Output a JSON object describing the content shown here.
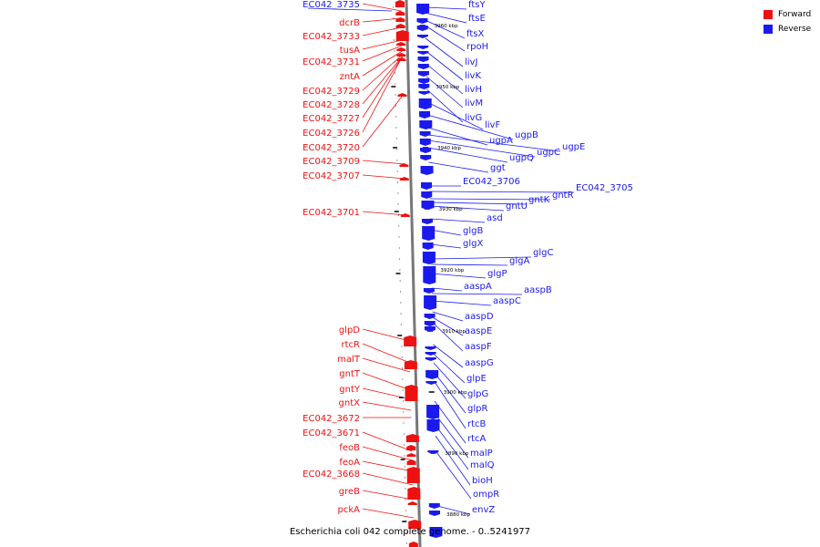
{
  "caption": "Escherichia coli 042 complete genome. - 0..5241977",
  "legend": {
    "forward_label": "Forward",
    "reverse_label": "Reverse",
    "forward_color": "#ee1111",
    "reverse_color": "#1a1aee"
  },
  "axis": {
    "ticks": [
      "3960 kbp",
      "3950 kbp",
      "3940 kbp",
      "3930 kbp",
      "3920 kbp",
      "3910 kbp",
      "3900 kbp",
      "3890 kbp",
      "3880 kbp"
    ]
  },
  "forward_genes": [
    "EC042_3735",
    "dcrB",
    "EC042_3733",
    "tusA",
    "EC042_3731",
    "zntA",
    "EC042_3729",
    "EC042_3728",
    "EC042_3727",
    "EC042_3726",
    "EC042_3720",
    "EC042_3709",
    "EC042_3707",
    "EC042_3701",
    "glpD",
    "rtcR",
    "malT",
    "gntT",
    "gntY",
    "gntX",
    "EC042_3672",
    "EC042_3671",
    "feoB",
    "feoA",
    "EC042_3668",
    "greB",
    "pckA"
  ],
  "reverse_genes": [
    "ftsY",
    "ftsE",
    "ftsX",
    "rpoH",
    "livJ",
    "livK",
    "livH",
    "livM",
    "livG",
    "livF",
    "ugpB",
    "ugpA",
    "ugpE",
    "ugpC",
    "ugpQ",
    "ggt",
    "EC042_3706",
    "EC042_3705",
    "gntR",
    "gntK",
    "gntU",
    "asd",
    "glgB",
    "glgX",
    "glgC",
    "glgA",
    "glgP",
    "aaspA",
    "aaspB",
    "aaspC",
    "aaspD",
    "aaspE",
    "aaspF",
    "aaspG",
    "glpE",
    "glpG",
    "glpR",
    "rtcB",
    "rtcA",
    "malP",
    "malQ",
    "bioH",
    "ompR",
    "envZ"
  ]
}
